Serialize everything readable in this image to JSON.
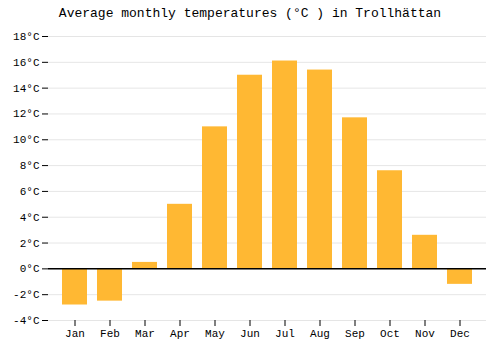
{
  "chart_data": {
    "type": "bar",
    "title": "Average monthly temperatures (°C ) in Trollhättan",
    "categories": [
      "Jan",
      "Feb",
      "Mar",
      "Apr",
      "May",
      "Jun",
      "Jul",
      "Aug",
      "Sep",
      "Oct",
      "Nov",
      "Dec"
    ],
    "values": [
      -2.8,
      -2.5,
      0.5,
      5.0,
      11.0,
      15.0,
      16.1,
      15.4,
      11.7,
      7.6,
      2.6,
      -1.2
    ],
    "color": "#FFB833",
    "ylim": [
      -4,
      18
    ],
    "yticks": [
      {
        "value": -4,
        "label": "-4°C"
      },
      {
        "value": -2,
        "label": "-2°C"
      },
      {
        "value": 0,
        "label": "0°C"
      },
      {
        "value": 2,
        "label": "2°C"
      },
      {
        "value": 4,
        "label": "4°C"
      },
      {
        "value": 6,
        "label": "6°C"
      },
      {
        "value": 8,
        "label": "8°C"
      },
      {
        "value": 10,
        "label": "10°C"
      },
      {
        "value": 12,
        "label": "12°C"
      },
      {
        "value": 14,
        "label": "14°C"
      },
      {
        "value": 16,
        "label": "16°C"
      },
      {
        "value": 18,
        "label": "18°C"
      }
    ],
    "grid": true
  }
}
